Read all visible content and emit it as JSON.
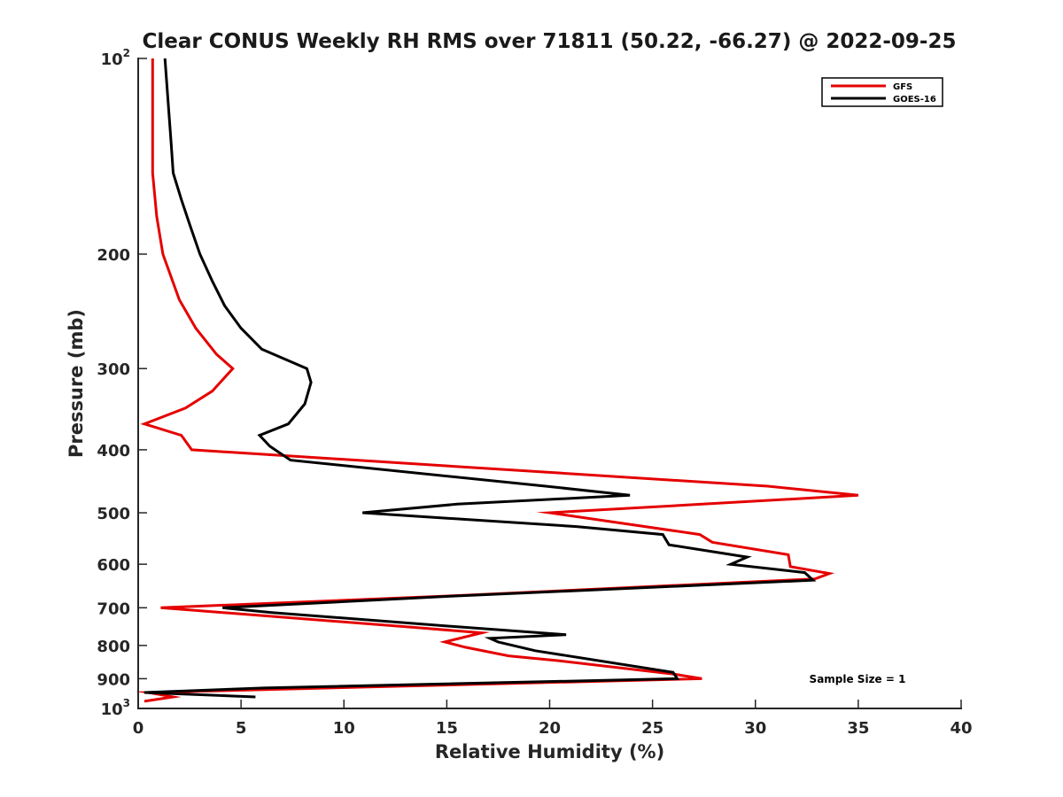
{
  "chart_data": {
    "type": "line",
    "title": "Clear CONUS Weekly RH RMS over 71811 (50.22, -66.27) @ 2022-09-25",
    "xlabel": "Relative Humidity (%)",
    "ylabel": "Pressure (mb)",
    "xlim": [
      0,
      40
    ],
    "ylim": [
      100,
      1000
    ],
    "y_scale": "log",
    "y_reversed": true,
    "grid": false,
    "legend_position": "top-right",
    "x_ticks": [
      "0",
      "5",
      "10",
      "15",
      "20",
      "25",
      "30",
      "35",
      "40"
    ],
    "y_ticks": [
      {
        "value": 100,
        "base": "10",
        "exp": "2"
      },
      {
        "value": 200,
        "label": "200"
      },
      {
        "value": 300,
        "label": "300"
      },
      {
        "value": 400,
        "label": "400"
      },
      {
        "value": 500,
        "label": "500"
      },
      {
        "value": 600,
        "label": "600"
      },
      {
        "value": 700,
        "label": "700"
      },
      {
        "value": 800,
        "label": "800"
      },
      {
        "value": 900,
        "label": "900"
      },
      {
        "value": 1000,
        "base": "10",
        "exp": "3"
      }
    ],
    "annotation": "Sample Size = 1",
    "series": [
      {
        "name": "GFS",
        "color": "#e50000",
        "points": [
          [
            0.7,
            100
          ],
          [
            0.7,
            150
          ],
          [
            0.9,
            175
          ],
          [
            1.2,
            200
          ],
          [
            2.0,
            235
          ],
          [
            2.8,
            260
          ],
          [
            3.8,
            285
          ],
          [
            4.6,
            300
          ],
          [
            3.6,
            325
          ],
          [
            2.3,
            345
          ],
          [
            0.3,
            365
          ],
          [
            2.1,
            380
          ],
          [
            2.6,
            400
          ],
          [
            30.6,
            455
          ],
          [
            35.0,
            470
          ],
          [
            20.0,
            500
          ],
          [
            27.3,
            540
          ],
          [
            27.9,
            555
          ],
          [
            31.6,
            580
          ],
          [
            31.7,
            605
          ],
          [
            33.6,
            620
          ],
          [
            32.9,
            632
          ],
          [
            15.8,
            670
          ],
          [
            1.1,
            700
          ],
          [
            13.3,
            750
          ],
          [
            16.7,
            765
          ],
          [
            14.9,
            790
          ],
          [
            15.9,
            805
          ],
          [
            18.0,
            830
          ],
          [
            20.5,
            845
          ],
          [
            26.0,
            885
          ],
          [
            27.4,
            900
          ],
          [
            0.5,
            945
          ],
          [
            1.7,
            960
          ],
          [
            0.3,
            975
          ]
        ]
      },
      {
        "name": "GOES-16",
        "color": "#000000",
        "points": [
          [
            1.3,
            100
          ],
          [
            1.6,
            135
          ],
          [
            1.7,
            150
          ],
          [
            2.1,
            165
          ],
          [
            2.5,
            180
          ],
          [
            3.0,
            200
          ],
          [
            3.6,
            220
          ],
          [
            4.2,
            240
          ],
          [
            5.0,
            260
          ],
          [
            6.0,
            280
          ],
          [
            8.2,
            300
          ],
          [
            8.4,
            315
          ],
          [
            8.1,
            340
          ],
          [
            7.3,
            365
          ],
          [
            5.9,
            380
          ],
          [
            6.4,
            395
          ],
          [
            7.4,
            415
          ],
          [
            19.8,
            455
          ],
          [
            23.9,
            470
          ],
          [
            15.5,
            485
          ],
          [
            10.9,
            500
          ],
          [
            21.3,
            525
          ],
          [
            25.5,
            540
          ],
          [
            25.8,
            560
          ],
          [
            29.6,
            585
          ],
          [
            28.8,
            600
          ],
          [
            32.4,
            618
          ],
          [
            32.8,
            635
          ],
          [
            15.2,
            672
          ],
          [
            4.1,
            700
          ],
          [
            6.5,
            712
          ],
          [
            15.8,
            750
          ],
          [
            20.8,
            770
          ],
          [
            17.1,
            780
          ],
          [
            17.5,
            790
          ],
          [
            19.3,
            815
          ],
          [
            26.0,
            880
          ],
          [
            26.2,
            900
          ],
          [
            6.1,
            930
          ],
          [
            0.3,
            945
          ],
          [
            5.7,
            960
          ]
        ]
      }
    ]
  }
}
